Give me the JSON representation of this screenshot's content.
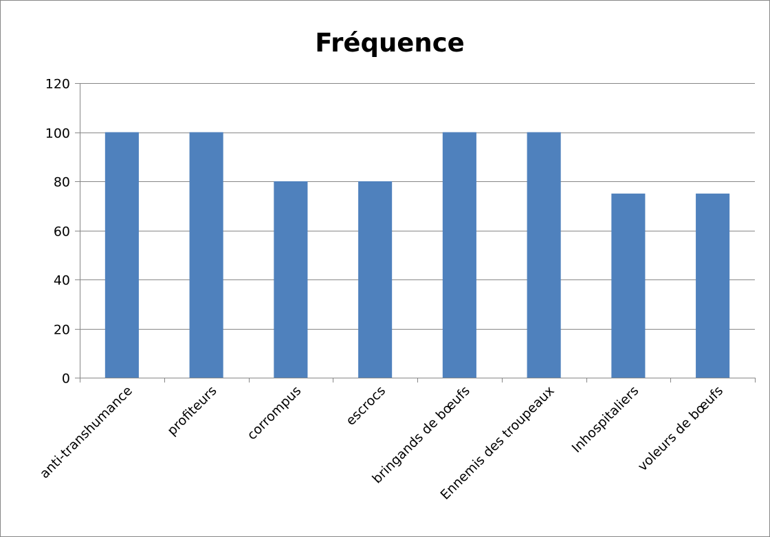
{
  "chart_data": {
    "type": "bar",
    "title": "Fréquence",
    "categories": [
      "anti-transhumance",
      "profiteurs",
      "corrompus",
      "escrocs",
      "bringands de bœufs",
      "Ennemis des troupeaux",
      "Inhospitaliers",
      "voleurs de bœufs"
    ],
    "values": [
      100,
      100,
      80,
      80,
      100,
      100,
      75,
      75
    ],
    "xlabel": "",
    "ylabel": "",
    "ylim": [
      0,
      120
    ],
    "yticks": [
      0,
      20,
      40,
      60,
      80,
      100,
      120
    ],
    "grid": true,
    "legend": false,
    "bar_color": "#4F81BD",
    "grid_color": "#868686",
    "axis_color": "#868686",
    "border_color": "#868686"
  }
}
